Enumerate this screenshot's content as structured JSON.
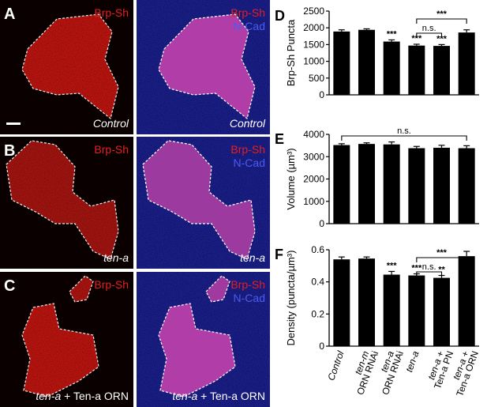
{
  "colors": {
    "red_channel": "#e4201e",
    "blue_channel": "#3a48e6",
    "bar": "#000000",
    "outline": "#ffffff"
  },
  "panels": {
    "A": {
      "letter": "A",
      "channel1": "Brp-Sh",
      "channel2": "N-Cad",
      "genotype": "Control"
    },
    "B": {
      "letter": "B",
      "channel1": "Brp-Sh",
      "channel2": "N-Cad",
      "genotype": "ten-a"
    },
    "C": {
      "letter": "C",
      "channel1": "Brp-Sh",
      "channel2": "N-Cad",
      "genotype_italic": "ten-a",
      "genotype_rest": " + Ten-a ORN"
    }
  },
  "x_labels": [
    {
      "main": "Control",
      "italic": true,
      "sub": ""
    },
    {
      "main": "ten-m",
      "italic": true,
      "sub": "ORN RNAi"
    },
    {
      "main": "ten-a",
      "italic": true,
      "sub": "ORN RNAi"
    },
    {
      "main": "ten-a",
      "italic": true,
      "sub": ""
    },
    {
      "main": "ten-a +",
      "italic": true,
      "sub": "Ten-a PN"
    },
    {
      "main": "ten-a +",
      "italic": true,
      "sub": "Ten-a ORN"
    }
  ],
  "chart_data": [
    {
      "panel_letter": "D",
      "type": "bar",
      "categories": [
        "Control",
        "ten-m ORN RNAi",
        "ten-a ORN RNAi",
        "ten-a",
        "ten-a + Ten-a PN",
        "ten-a + Ten-a ORN"
      ],
      "values": [
        1890,
        1940,
        1590,
        1470,
        1460,
        1860
      ],
      "errors": [
        50,
        30,
        50,
        40,
        40,
        80
      ],
      "ylabel": "Brp-Sh Puncta",
      "ylim": [
        0,
        2500
      ],
      "yticks": [
        0,
        500,
        1000,
        1500,
        2000,
        2500
      ],
      "stars": [
        "",
        "",
        "***",
        "***",
        "***",
        ""
      ],
      "brackets": [
        {
          "from": 3,
          "to": 4,
          "label": "n.s."
        },
        {
          "from": 3,
          "to": 5,
          "label": "***"
        }
      ]
    },
    {
      "panel_letter": "E",
      "type": "bar",
      "categories": [
        "Control",
        "ten-m ORN RNAi",
        "ten-a ORN RNAi",
        "ten-a",
        "ten-a + Ten-a PN",
        "ten-a + Ten-a ORN"
      ],
      "values": [
        3520,
        3570,
        3550,
        3380,
        3400,
        3380
      ],
      "errors": [
        60,
        50,
        110,
        80,
        110,
        110
      ],
      "ylabel": "Volume (µm³)",
      "ylim": [
        0,
        4000
      ],
      "yticks": [
        0,
        1000,
        2000,
        3000,
        4000
      ],
      "stars": [
        "",
        "",
        "",
        "",
        "",
        ""
      ],
      "brackets": [
        {
          "from": 0,
          "to": 5,
          "label": "n.s."
        }
      ]
    },
    {
      "panel_letter": "F",
      "type": "bar",
      "categories": [
        "Control",
        "ten-m ORN RNAi",
        "ten-a ORN RNAi",
        "ten-a",
        "ten-a + Ten-a PN",
        "ten-a + Ten-a ORN"
      ],
      "values": [
        0.54,
        0.545,
        0.445,
        0.44,
        0.425,
        0.56
      ],
      "errors": [
        0.015,
        0.01,
        0.02,
        0.01,
        0.015,
        0.03
      ],
      "ylabel": "Density (puncta/µm³)",
      "ylim": [
        0,
        0.6
      ],
      "yticks": [
        0,
        0.2,
        0.4,
        0.6
      ],
      "stars": [
        "",
        "",
        "***",
        "***",
        "**",
        ""
      ],
      "brackets": [
        {
          "from": 3,
          "to": 4,
          "label": "n.s."
        },
        {
          "from": 3,
          "to": 5,
          "label": "***"
        }
      ]
    }
  ]
}
